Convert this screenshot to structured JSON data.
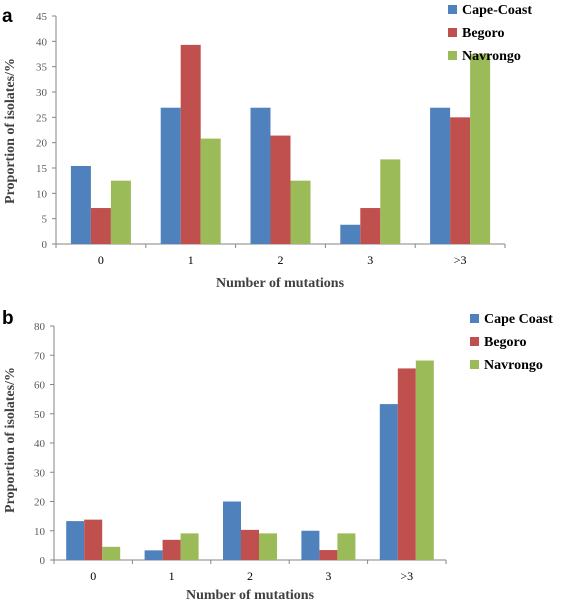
{
  "chart_data": [
    {
      "type": "bar",
      "panel_label": "a",
      "categories": [
        "0",
        "1",
        "2",
        "3",
        ">3"
      ],
      "series": [
        {
          "name": "Cape-Coast",
          "color": "#4f81bd",
          "values": [
            15.4,
            26.9,
            26.9,
            3.8,
            26.9
          ]
        },
        {
          "name": "Begoro",
          "color": "#c0504d",
          "values": [
            7.1,
            39.3,
            21.4,
            7.1,
            25.0
          ]
        },
        {
          "name": "Navrongo",
          "color": "#9bbb59",
          "values": [
            12.5,
            20.8,
            12.5,
            16.7,
            37.5
          ]
        }
      ],
      "xlabel": "Number of mutations",
      "ylabel": "Proportion of  isolates/%",
      "ylim": [
        0,
        45
      ],
      "yticks": [
        "0",
        "5",
        "10",
        "15",
        "20",
        "25",
        "30",
        "35",
        "40",
        "45"
      ],
      "grid": false,
      "legend_position": "top-right"
    },
    {
      "type": "bar",
      "panel_label": "b",
      "categories": [
        "0",
        "1",
        "2",
        "3",
        ">3"
      ],
      "series": [
        {
          "name": "Cape Coast",
          "color": "#4f81bd",
          "values": [
            13.3,
            3.3,
            20.0,
            10.0,
            53.3
          ]
        },
        {
          "name": "Begoro",
          "color": "#c0504d",
          "values": [
            13.8,
            6.9,
            10.3,
            3.4,
            65.5
          ]
        },
        {
          "name": "Navrongo",
          "color": "#9bbb59",
          "values": [
            4.5,
            9.1,
            9.1,
            9.1,
            68.2
          ]
        }
      ],
      "xlabel": "Number of mutations",
      "ylabel": "Proportion of  isolates/%",
      "ylim": [
        0,
        80
      ],
      "yticks": [
        "0",
        "10",
        "20",
        "30",
        "40",
        "50",
        "60",
        "70",
        "80"
      ],
      "grid": false,
      "legend_position": "top-right"
    }
  ]
}
